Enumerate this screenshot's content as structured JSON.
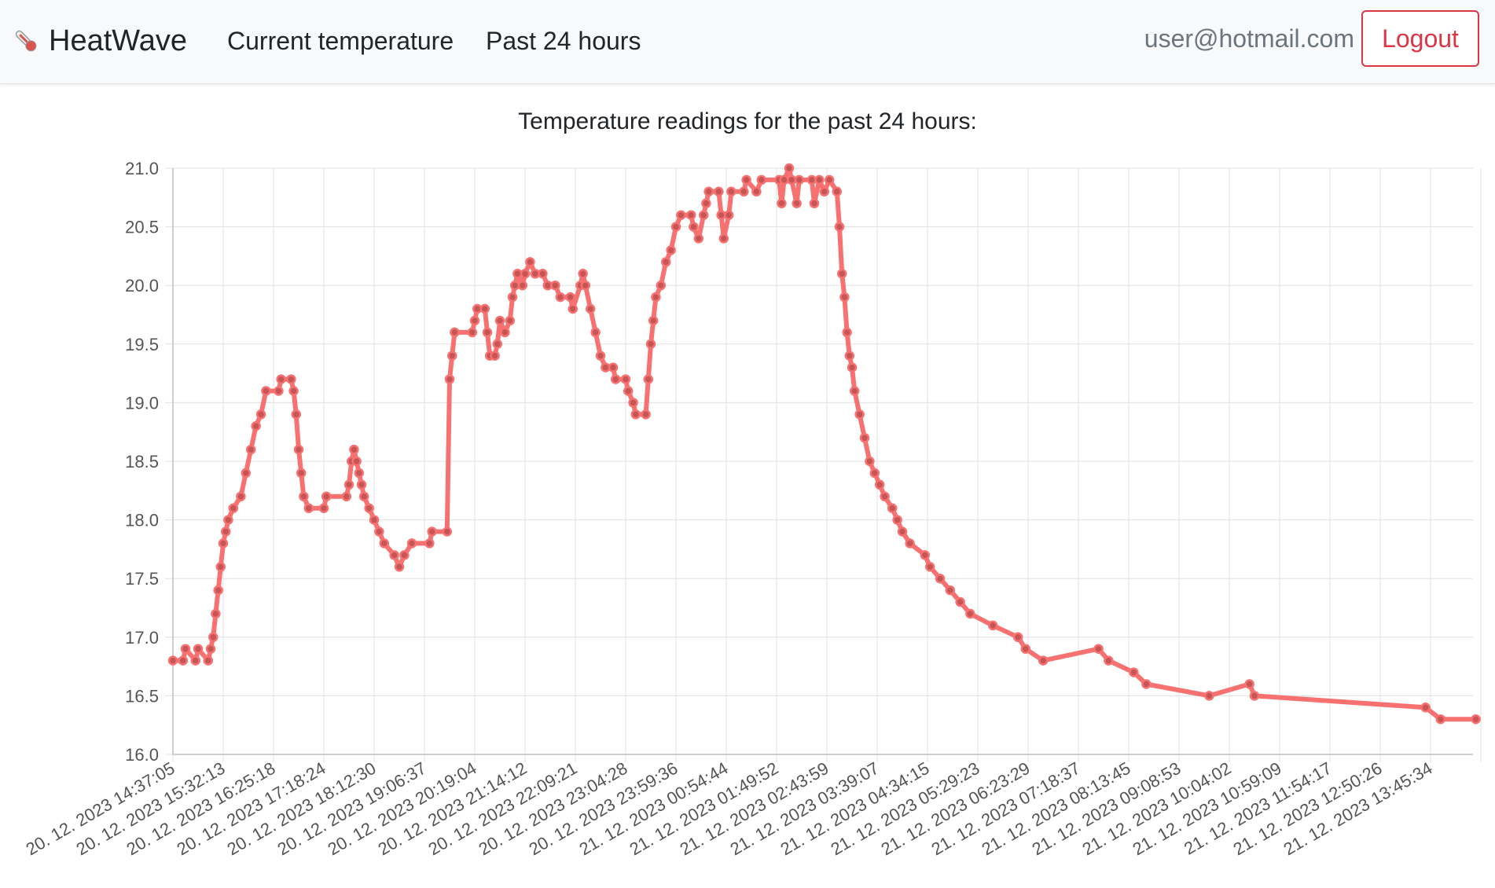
{
  "navbar": {
    "brand": "HeatWave",
    "brand_icon": "thermometer-icon",
    "links": [
      "Current temperature",
      "Past 24 hours"
    ],
    "user_email": "user@hotmail.com",
    "logout_label": "Logout"
  },
  "colors": {
    "line": "#f87171",
    "point_fill": "#c65555",
    "logout": "#dc3545",
    "navbar_bg": "#f8f9fa",
    "grid": "#e0e0e0"
  },
  "chart_data": {
    "type": "line",
    "title": "Temperature readings for the past 24 hours:",
    "ylim": [
      16.0,
      21.0
    ],
    "y_ticks": [
      "21.0",
      "20.5",
      "20.0",
      "19.5",
      "19.0",
      "18.5",
      "18.0",
      "17.5",
      "17.0",
      "16.5",
      "16.0"
    ],
    "x_tick_labels": [
      "20. 12. 2023 14:37:05",
      "20. 12. 2023 15:32:13",
      "20. 12. 2023 16:25:18",
      "20. 12. 2023 17:18:24",
      "20. 12. 2023 18:12:30",
      "20. 12. 2023 19:06:37",
      "20. 12. 2023 20:19:04",
      "20. 12. 2023 21:14:12",
      "20. 12. 2023 22:09:21",
      "20. 12. 2023 23:04:28",
      "20. 12. 2023 23:59:36",
      "21. 12. 2023 00:54:44",
      "21. 12. 2023 01:49:52",
      "21. 12. 2023 02:43:59",
      "21. 12. 2023 03:39:07",
      "21. 12. 2023 04:34:15",
      "21. 12. 2023 05:29:23",
      "21. 12. 2023 06:23:29",
      "21. 12. 2023 07:18:37",
      "21. 12. 2023 08:13:45",
      "21. 12. 2023 09:08:53",
      "21. 12. 2023 10:04:02",
      "21. 12. 2023 10:59:09",
      "21. 12. 2023 11:54:17",
      "21. 12. 2023 12:50:26",
      "21. 12. 2023 13:45:34"
    ],
    "grid": true,
    "legend": "none",
    "series": [
      {
        "points": [
          [
            0,
            16.8
          ],
          [
            0.2,
            16.8
          ],
          [
            0.25,
            16.9
          ],
          [
            0.45,
            16.8
          ],
          [
            0.5,
            16.9
          ],
          [
            0.7,
            16.8
          ],
          [
            0.75,
            16.9
          ],
          [
            0.8,
            17.0
          ],
          [
            0.85,
            17.2
          ],
          [
            0.9,
            17.4
          ],
          [
            0.95,
            17.6
          ],
          [
            1.0,
            17.8
          ],
          [
            1.05,
            17.9
          ],
          [
            1.1,
            18.0
          ],
          [
            1.2,
            18.1
          ],
          [
            1.35,
            18.2
          ],
          [
            1.45,
            18.4
          ],
          [
            1.55,
            18.6
          ],
          [
            1.65,
            18.8
          ],
          [
            1.75,
            18.9
          ],
          [
            1.85,
            19.1
          ],
          [
            2.1,
            19.1
          ],
          [
            2.15,
            19.2
          ],
          [
            2.35,
            19.2
          ],
          [
            2.4,
            19.1
          ],
          [
            2.45,
            18.9
          ],
          [
            2.5,
            18.6
          ],
          [
            2.55,
            18.4
          ],
          [
            2.6,
            18.2
          ],
          [
            2.7,
            18.1
          ],
          [
            3.0,
            18.1
          ],
          [
            3.05,
            18.2
          ],
          [
            3.45,
            18.2
          ],
          [
            3.5,
            18.3
          ],
          [
            3.55,
            18.5
          ],
          [
            3.6,
            18.6
          ],
          [
            3.65,
            18.5
          ],
          [
            3.7,
            18.4
          ],
          [
            3.75,
            18.3
          ],
          [
            3.8,
            18.2
          ],
          [
            3.9,
            18.1
          ],
          [
            4.0,
            18.0
          ],
          [
            4.1,
            17.9
          ],
          [
            4.2,
            17.8
          ],
          [
            4.4,
            17.7
          ],
          [
            4.5,
            17.6
          ],
          [
            4.6,
            17.7
          ],
          [
            4.75,
            17.8
          ],
          [
            5.1,
            17.8
          ],
          [
            5.15,
            17.9
          ],
          [
            5.45,
            17.9
          ],
          [
            5.5,
            19.2
          ],
          [
            5.55,
            19.4
          ],
          [
            5.6,
            19.6
          ],
          [
            5.95,
            19.6
          ],
          [
            6.0,
            19.7
          ],
          [
            6.05,
            19.8
          ],
          [
            6.2,
            19.8
          ],
          [
            6.25,
            19.6
          ],
          [
            6.3,
            19.4
          ],
          [
            6.4,
            19.4
          ],
          [
            6.45,
            19.5
          ],
          [
            6.5,
            19.7
          ],
          [
            6.6,
            19.6
          ],
          [
            6.7,
            19.7
          ],
          [
            6.75,
            19.9
          ],
          [
            6.8,
            20.0
          ],
          [
            6.85,
            20.1
          ],
          [
            6.95,
            20.0
          ],
          [
            7.0,
            20.1
          ],
          [
            7.1,
            20.2
          ],
          [
            7.2,
            20.1
          ],
          [
            7.35,
            20.1
          ],
          [
            7.45,
            20.0
          ],
          [
            7.6,
            20.0
          ],
          [
            7.7,
            19.9
          ],
          [
            7.9,
            19.9
          ],
          [
            7.95,
            19.8
          ],
          [
            8.1,
            20.0
          ],
          [
            8.15,
            20.1
          ],
          [
            8.2,
            20.0
          ],
          [
            8.3,
            19.8
          ],
          [
            8.4,
            19.6
          ],
          [
            8.5,
            19.4
          ],
          [
            8.6,
            19.3
          ],
          [
            8.75,
            19.3
          ],
          [
            8.8,
            19.2
          ],
          [
            9.0,
            19.2
          ],
          [
            9.05,
            19.1
          ],
          [
            9.15,
            19.0
          ],
          [
            9.2,
            18.9
          ],
          [
            9.4,
            18.9
          ],
          [
            9.45,
            19.2
          ],
          [
            9.5,
            19.5
          ],
          [
            9.55,
            19.7
          ],
          [
            9.6,
            19.9
          ],
          [
            9.7,
            20.0
          ],
          [
            9.8,
            20.2
          ],
          [
            9.9,
            20.3
          ],
          [
            10.0,
            20.5
          ],
          [
            10.1,
            20.6
          ],
          [
            10.3,
            20.6
          ],
          [
            10.35,
            20.5
          ],
          [
            10.45,
            20.4
          ],
          [
            10.55,
            20.6
          ],
          [
            10.6,
            20.7
          ],
          [
            10.65,
            20.8
          ],
          [
            10.85,
            20.8
          ],
          [
            10.9,
            20.6
          ],
          [
            10.95,
            20.4
          ],
          [
            11.05,
            20.6
          ],
          [
            11.1,
            20.8
          ],
          [
            11.35,
            20.8
          ],
          [
            11.4,
            20.9
          ],
          [
            11.6,
            20.8
          ],
          [
            11.7,
            20.9
          ],
          [
            12.05,
            20.9
          ],
          [
            12.1,
            20.7
          ],
          [
            12.15,
            20.9
          ],
          [
            12.25,
            21.0
          ],
          [
            12.3,
            20.9
          ],
          [
            12.4,
            20.7
          ],
          [
            12.45,
            20.9
          ],
          [
            12.7,
            20.9
          ],
          [
            12.75,
            20.7
          ],
          [
            12.85,
            20.9
          ],
          [
            12.95,
            20.8
          ],
          [
            13.05,
            20.9
          ],
          [
            13.2,
            20.8
          ],
          [
            13.25,
            20.5
          ],
          [
            13.3,
            20.1
          ],
          [
            13.35,
            19.9
          ],
          [
            13.4,
            19.6
          ],
          [
            13.45,
            19.4
          ],
          [
            13.5,
            19.3
          ],
          [
            13.55,
            19.1
          ],
          [
            13.65,
            18.9
          ],
          [
            13.75,
            18.7
          ],
          [
            13.85,
            18.5
          ],
          [
            13.95,
            18.4
          ],
          [
            14.05,
            18.3
          ],
          [
            14.15,
            18.2
          ],
          [
            14.3,
            18.1
          ],
          [
            14.4,
            18.0
          ],
          [
            14.5,
            17.9
          ],
          [
            14.65,
            17.8
          ],
          [
            14.95,
            17.7
          ],
          [
            15.05,
            17.6
          ],
          [
            15.25,
            17.5
          ],
          [
            15.45,
            17.4
          ],
          [
            15.65,
            17.3
          ],
          [
            15.85,
            17.2
          ],
          [
            16.3,
            17.1
          ],
          [
            16.8,
            17.0
          ],
          [
            16.95,
            16.9
          ],
          [
            17.3,
            16.8
          ],
          [
            18.4,
            16.9
          ],
          [
            18.6,
            16.8
          ],
          [
            19.1,
            16.7
          ],
          [
            19.35,
            16.6
          ],
          [
            20.6,
            16.5
          ],
          [
            21.4,
            16.6
          ],
          [
            21.5,
            16.5
          ],
          [
            24.9,
            16.4
          ],
          [
            25.2,
            16.3
          ],
          [
            25.9,
            16.3
          ]
        ]
      }
    ]
  }
}
